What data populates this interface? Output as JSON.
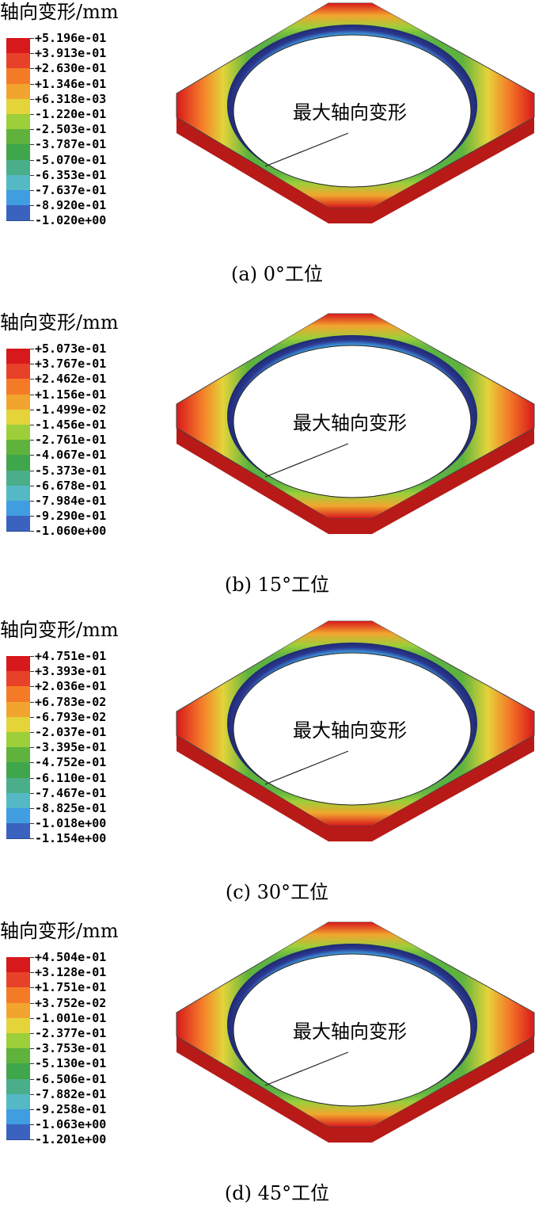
{
  "legend_colors": [
    "#d7191c",
    "#e8412a",
    "#f47a28",
    "#f2a52e",
    "#e4d43a",
    "#9ccf3a",
    "#5fb33d",
    "#3fa64b",
    "#4aae8a",
    "#54b9c4",
    "#3f9de0",
    "#3a63c0",
    "#2b3790"
  ],
  "panels": [
    {
      "legend_title": "轴向变形/mm",
      "ticks": [
        "+5.196e-01",
        "+3.913e-01",
        "+2.630e-01",
        "+1.346e-01",
        "+6.318e-03",
        "-1.220e-01",
        "-2.503e-01",
        "-3.787e-01",
        "-5.070e-01",
        "-6.353e-01",
        "-7.637e-01",
        "-8.920e-01",
        "-1.020e+00"
      ],
      "annotation": "最大轴向变形",
      "caption": "(a) 0°工位"
    },
    {
      "legend_title": "轴向变形/mm",
      "ticks": [
        "+5.073e-01",
        "+3.767e-01",
        "+2.462e-01",
        "+1.156e-01",
        "-1.499e-02",
        "-1.456e-01",
        "-2.761e-01",
        "-4.067e-01",
        "-5.373e-01",
        "-6.678e-01",
        "-7.984e-01",
        "-9.290e-01",
        "-1.060e+00"
      ],
      "annotation": "最大轴向变形",
      "caption": "(b) 15°工位"
    },
    {
      "legend_title": "轴向变形/mm",
      "ticks": [
        "+4.751e-01",
        "+3.393e-01",
        "+2.036e-01",
        "+6.783e-02",
        "-6.793e-02",
        "-2.037e-01",
        "-3.395e-01",
        "-4.752e-01",
        "-6.110e-01",
        "-7.467e-01",
        "-8.825e-01",
        "-1.018e+00",
        "-1.154e+00"
      ],
      "annotation": "最大轴向变形",
      "caption": "(c) 30°工位"
    },
    {
      "legend_title": "轴向变形/mm",
      "ticks": [
        "+4.504e-01",
        "+3.128e-01",
        "+1.751e-01",
        "+3.752e-02",
        "-1.001e-01",
        "-2.377e-01",
        "-3.753e-01",
        "-5.130e-01",
        "-6.506e-01",
        "-7.882e-01",
        "-9.258e-01",
        "-1.063e+00",
        "-1.201e+00"
      ],
      "annotation": "最大轴向变形",
      "caption": "(d) 45°工位"
    }
  ]
}
